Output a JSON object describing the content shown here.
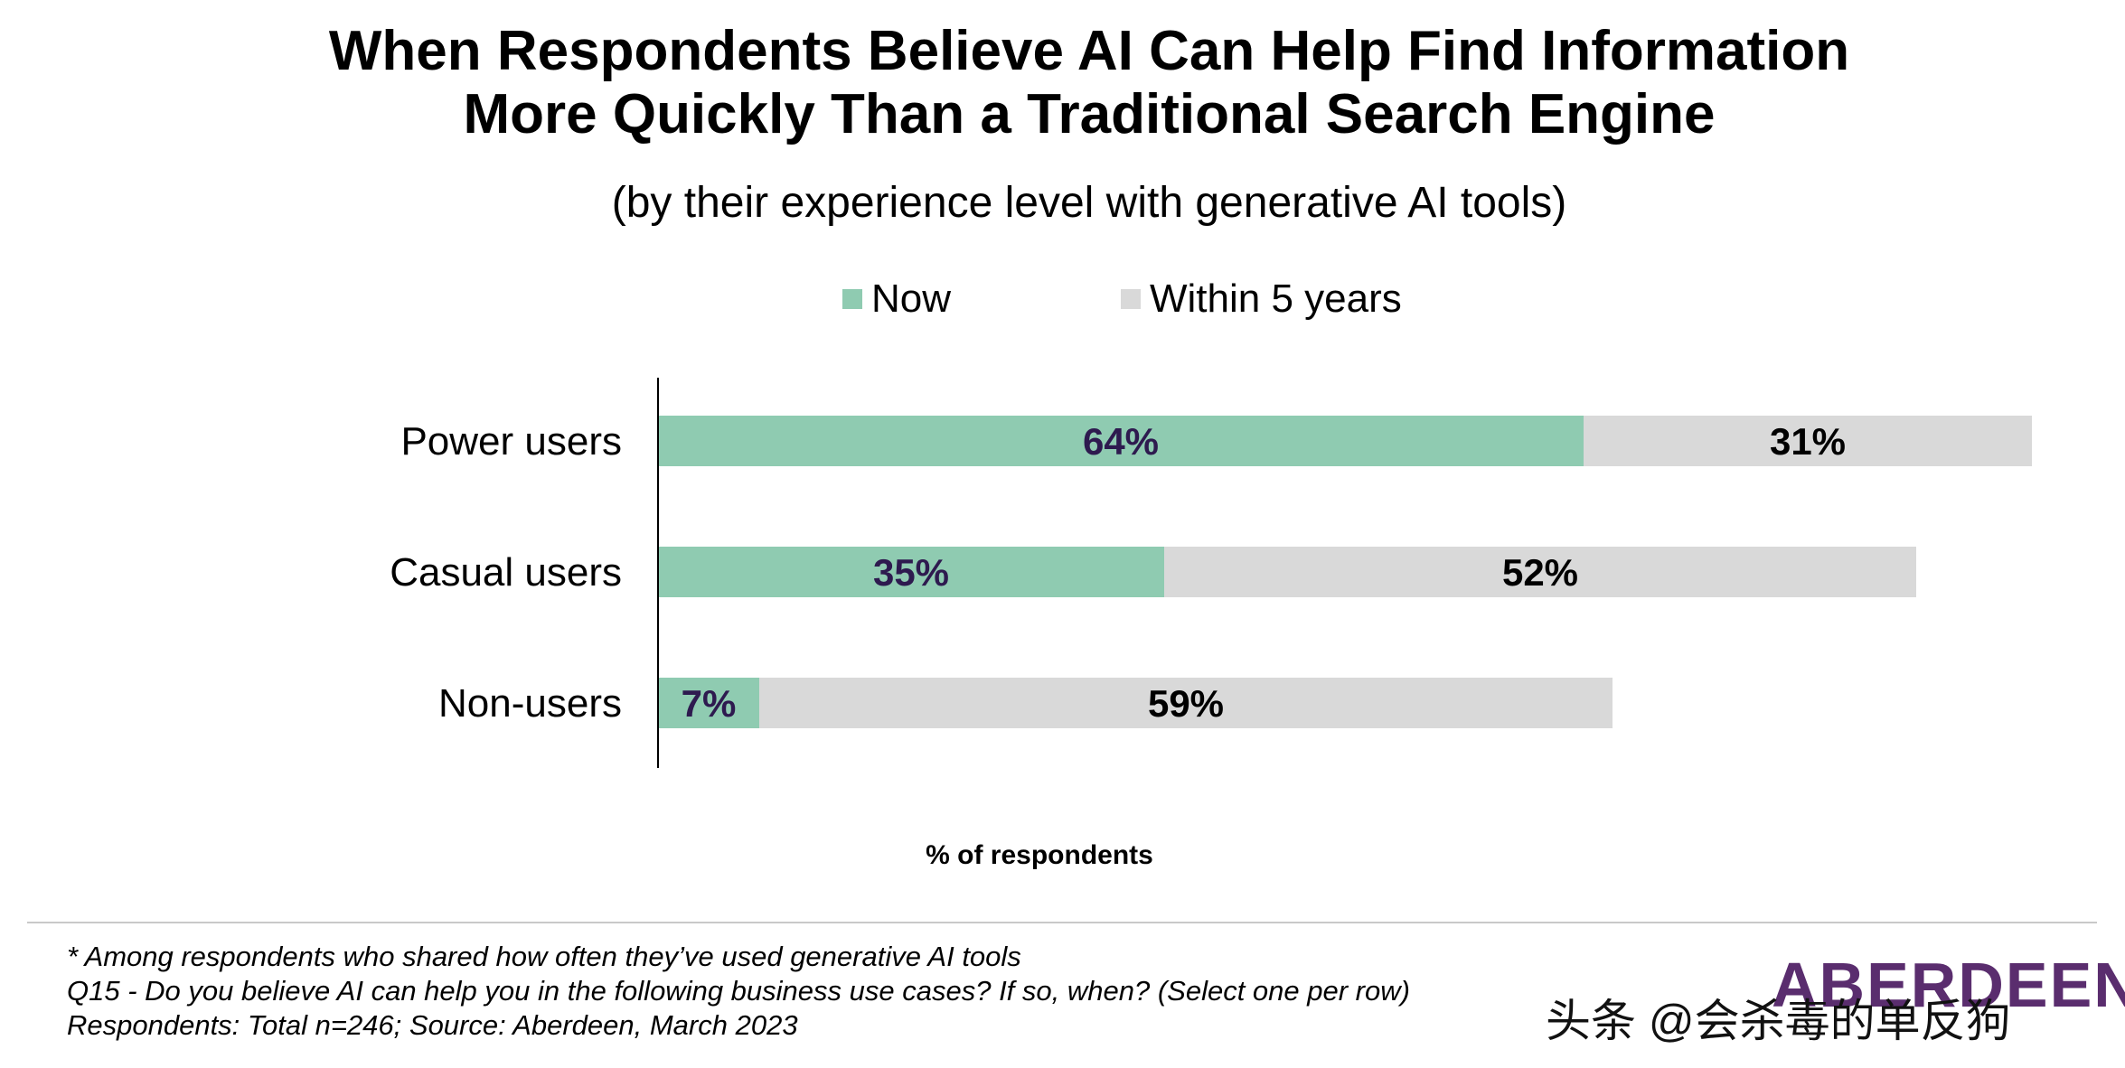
{
  "chart_data": {
    "type": "bar",
    "orientation": "horizontal",
    "stacked": true,
    "title_line1": "When Respondents Believe AI Can Help Find Information",
    "title_line2": "More Quickly Than a Traditional Search Engine",
    "subtitle": "(by their experience level with generative AI tools)",
    "categories": [
      "Power users",
      "Casual users",
      "Non-users"
    ],
    "series": [
      {
        "name": "Now",
        "values": [
          64,
          35,
          7
        ],
        "labels": [
          "64%",
          "35%",
          "7%"
        ],
        "color": "#8fcbb1",
        "label_color": "#2e1a4f"
      },
      {
        "name": "Within 5 years",
        "values": [
          31,
          52,
          59
        ],
        "labels": [
          "31%",
          "52%",
          "59%"
        ],
        "color": "#d9d9d9",
        "label_color": "#000000"
      }
    ],
    "xlabel": "% of respondents",
    "xlim": [
      0,
      100
    ],
    "grid": false,
    "legend_position": "top"
  },
  "footnotes": {
    "line1": "* Among respondents who shared how often they’ve used generative AI tools",
    "line2": "Q15 - Do you believe AI can help you in the following business use cases? If so, when? (Select one per row)",
    "line3": "Respondents: Total n=246; Source: Aberdeen, March 2023"
  },
  "logo_text": "ABERDEEN",
  "watermark": "头条 @会杀毒的单反狗"
}
